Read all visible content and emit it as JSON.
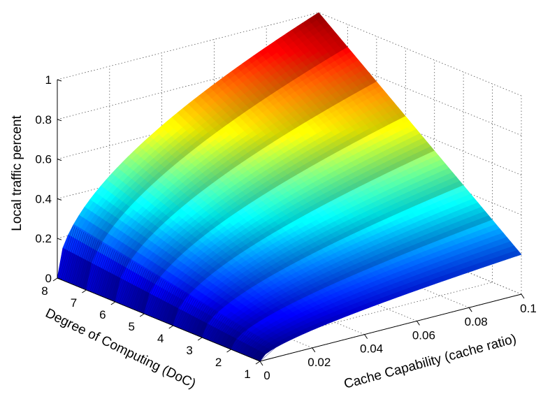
{
  "chart_data": {
    "type": "surface",
    "title": "",
    "xlabel": "Cache Capability (cache ratio)",
    "ylabel": "Degree of Computing (DoC)",
    "zlabel": "Local traffic percent",
    "xlim": [
      0,
      0.1
    ],
    "ylim": [
      1,
      8
    ],
    "zlim": [
      0,
      1
    ],
    "x_ticks": [
      0,
      0.02,
      0.04,
      0.06,
      0.08,
      0.1
    ],
    "x_tick_labels": [
      "0",
      "0.02",
      "0.04",
      "0.06",
      "0.08",
      "0.1"
    ],
    "y_ticks": [
      1,
      2,
      3,
      4,
      5,
      6,
      7,
      8
    ],
    "y_tick_labels": [
      "1",
      "2",
      "3",
      "4",
      "5",
      "6",
      "7",
      "8"
    ],
    "z_ticks": [
      0,
      0.2,
      0.4,
      0.6,
      0.8,
      1
    ],
    "z_tick_labels": [
      "0",
      "0.2",
      "0.4",
      "0.6",
      "0.8",
      "1"
    ],
    "grid": true,
    "colormap": "jet",
    "surface_points": [
      {
        "x": 0.1,
        "y": 1,
        "z": 0.2
      },
      {
        "x": 0.1,
        "y": 8,
        "z": 1.0
      },
      {
        "x": 0,
        "y": 1,
        "z": 0
      },
      {
        "x": 0,
        "y": 8,
        "z": 0
      }
    ]
  }
}
